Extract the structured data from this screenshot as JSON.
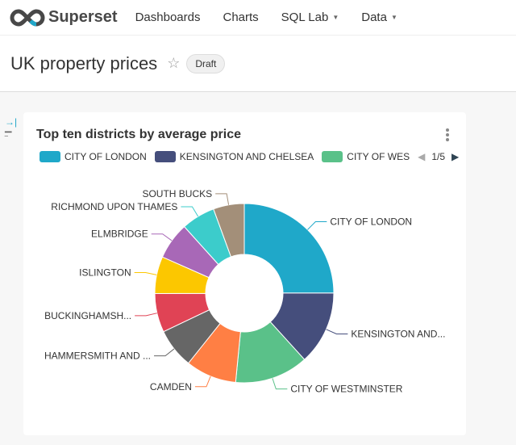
{
  "nav": {
    "brand": "Superset",
    "items": [
      {
        "label": "Dashboards"
      },
      {
        "label": "Charts"
      },
      {
        "label": "SQL Lab",
        "dropdown": true
      },
      {
        "label": "Data",
        "dropdown": true
      }
    ]
  },
  "header": {
    "title": "UK property prices",
    "badge": "Draft"
  },
  "chart": {
    "title": "Top ten districts by average price",
    "legend": {
      "items": [
        "CITY OF LONDON",
        "KENSINGTON AND CHELSEA",
        "CITY OF WES"
      ],
      "page": "1/5"
    }
  },
  "chart_data": {
    "type": "pie",
    "donut": true,
    "title": "Top ten districts by average price",
    "categories": [
      "CITY OF LONDON",
      "KENSINGTON AND CHELSEA",
      "CITY OF WESTMINSTER",
      "CAMDEN",
      "HAMMERSMITH AND FULHAM",
      "BUCKINGHAMSHIRE",
      "ISLINGTON",
      "ELMBRIDGE",
      "RICHMOND UPON THAMES",
      "SOUTH BUCKS"
    ],
    "labels": [
      "CITY OF LONDON",
      "KENSINGTON AND...",
      "CITY OF WESTMINSTER",
      "CAMDEN",
      "HAMMERSMITH AND ...",
      "BUCKINGHAMSH...",
      "ISLINGTON",
      "ELMBRIDGE",
      "RICHMOND UPON THAMES",
      "SOUTH BUCKS"
    ],
    "values": [
      25,
      13.3,
      13.3,
      9.2,
      7.2,
      7,
      6.7,
      6.7,
      6.1,
      5.6
    ],
    "colors": [
      "#1FA8C9",
      "#454E7C",
      "#5AC189",
      "#FF7F44",
      "#666666",
      "#E04355",
      "#FCC700",
      "#A868B7",
      "#3CCCCB",
      "#A38F79"
    ],
    "legend_placement": "top"
  }
}
